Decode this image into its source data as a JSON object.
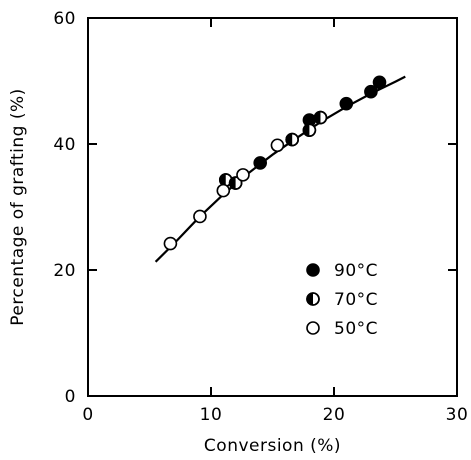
{
  "chart_data": {
    "type": "scatter",
    "title": "",
    "xlabel": "Conversion (%)",
    "ylabel": "Percentage of grafting (%)",
    "xlim": [
      0,
      30
    ],
    "ylim": [
      0,
      60
    ],
    "xticks": [
      0,
      10,
      20,
      30
    ],
    "yticks": [
      0,
      20,
      40,
      60
    ],
    "x_tick_labels": [
      "0",
      "10",
      "20",
      "30"
    ],
    "y_tick_labels": [
      "0",
      "20",
      "40",
      "60"
    ],
    "grid": false,
    "legend_position": "lower-right",
    "legend": [
      {
        "label": "90°C",
        "marker": "filled"
      },
      {
        "label": "70°C",
        "marker": "half-filled"
      },
      {
        "label": "50°C",
        "marker": "open"
      }
    ],
    "series": [
      {
        "name": "90°C",
        "marker": "filled",
        "x": [
          14.0,
          18.0,
          21.0,
          23.0,
          23.7
        ],
        "y": [
          37.0,
          43.8,
          46.4,
          48.3,
          49.8
        ]
      },
      {
        "name": "70°C",
        "marker": "half-filled",
        "x": [
          11.2,
          12.0,
          16.6,
          18.0,
          18.9
        ],
        "y": [
          34.3,
          33.8,
          40.7,
          42.2,
          44.2
        ]
      },
      {
        "name": "50°C",
        "marker": "open",
        "x": [
          6.7,
          9.1,
          11.0,
          12.6,
          15.4
        ],
        "y": [
          24.2,
          28.5,
          32.6,
          35.1,
          39.8
        ]
      }
    ],
    "fit_curve": {
      "x": [
        5.5,
        7.0,
        9.0,
        11.0,
        13.0,
        15.0,
        17.0,
        19.0,
        21.0,
        23.0,
        25.0,
        25.8
      ],
      "y": [
        21.3,
        24.2,
        28.3,
        32.0,
        35.3,
        38.3,
        41.0,
        43.6,
        45.9,
        48.0,
        49.9,
        50.7
      ]
    }
  }
}
